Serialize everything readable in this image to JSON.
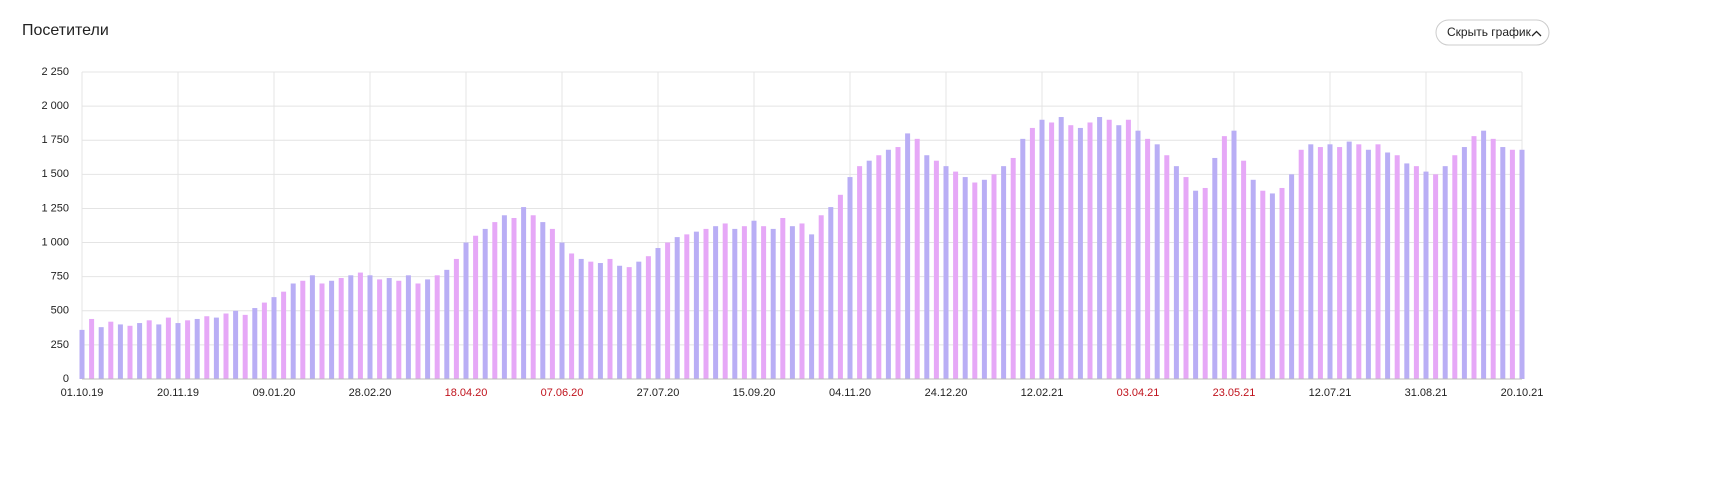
{
  "header": {
    "title": "Посетители",
    "button": "Скрыть график"
  },
  "chart_data": {
    "type": "bar",
    "categories": [
      "01.10.19",
      null,
      null,
      null,
      null,
      null,
      null,
      null,
      null,
      null,
      "20.11.19",
      null,
      null,
      null,
      null,
      null,
      null,
      null,
      null,
      null,
      "09.01.20",
      null,
      null,
      null,
      null,
      null,
      null,
      null,
      null,
      null,
      "28.02.20",
      null,
      null,
      null,
      null,
      null,
      null,
      null,
      null,
      null,
      "18.04.20",
      null,
      null,
      null,
      null,
      null,
      null,
      null,
      null,
      null,
      "07.06.20",
      null,
      null,
      null,
      null,
      null,
      null,
      null,
      null,
      null,
      "27.07.20",
      null,
      null,
      null,
      null,
      null,
      null,
      null,
      null,
      null,
      "15.09.20",
      null,
      null,
      null,
      null,
      null,
      null,
      null,
      null,
      null,
      "04.11.20",
      null,
      null,
      null,
      null,
      null,
      null,
      null,
      null,
      null,
      "24.12.20",
      null,
      null,
      null,
      null,
      null,
      null,
      null,
      null,
      null,
      "12.02.21",
      null,
      null,
      null,
      null,
      null,
      null,
      null,
      null,
      null,
      "03.04.21",
      null,
      null,
      null,
      null,
      null,
      null,
      null,
      null,
      null,
      "23.05.21",
      null,
      null,
      null,
      null,
      null,
      null,
      null,
      null,
      null,
      "12.07.21",
      null,
      null,
      null,
      null,
      null,
      null,
      null,
      null,
      null,
      "31.08.21",
      null,
      null,
      null,
      null,
      null,
      null,
      null,
      null,
      null,
      "20.10.21"
    ],
    "values": [
      360,
      440,
      380,
      420,
      400,
      390,
      410,
      430,
      400,
      450,
      410,
      430,
      440,
      460,
      450,
      480,
      500,
      470,
      520,
      560,
      600,
      640,
      700,
      720,
      760,
      700,
      720,
      740,
      760,
      780,
      760,
      730,
      740,
      720,
      760,
      700,
      730,
      760,
      800,
      880,
      1000,
      1050,
      1100,
      1150,
      1200,
      1180,
      1260,
      1200,
      1150,
      1100,
      1000,
      920,
      880,
      860,
      850,
      880,
      830,
      820,
      860,
      900,
      960,
      1000,
      1040,
      1060,
      1080,
      1100,
      1120,
      1140,
      1100,
      1120,
      1160,
      1120,
      1100,
      1180,
      1120,
      1140,
      1060,
      1200,
      1260,
      1350,
      1480,
      1560,
      1600,
      1640,
      1680,
      1700,
      1800,
      1760,
      1640,
      1600,
      1560,
      1520,
      1480,
      1440,
      1460,
      1500,
      1560,
      1620,
      1760,
      1840,
      1900,
      1880,
      1920,
      1860,
      1840,
      1880,
      1920,
      1900,
      1860,
      1900,
      1820,
      1760,
      1720,
      1640,
      1560,
      1480,
      1380,
      1400,
      1620,
      1780,
      1820,
      1600,
      1460,
      1380,
      1360,
      1400,
      1500,
      1680,
      1720,
      1700,
      1720,
      1700,
      1740,
      1720,
      1680,
      1720,
      1660,
      1640,
      1580,
      1560,
      1520,
      1500,
      1560,
      1640,
      1700,
      1780,
      1820,
      1760,
      1700,
      1680,
      1680
    ],
    "colors": [
      "#b9aef5",
      "#e6a8f7"
    ],
    "label_color": "#222222",
    "highlight_color": "#c0121c",
    "highlighted": [
      40,
      50,
      110,
      120
    ],
    "ylim": [
      0,
      2250
    ],
    "yticks": [
      0,
      250,
      500,
      750,
      {
        "value": 1000,
        "label": "1 000"
      },
      {
        "value": 1250,
        "label": "1 250"
      },
      {
        "value": 1500,
        "label": "1 500"
      },
      {
        "value": 1750,
        "label": "1 750"
      },
      {
        "value": 2000,
        "label": "2 000"
      },
      {
        "value": 2250,
        "label": "2 250"
      }
    ],
    "grid": true
  }
}
